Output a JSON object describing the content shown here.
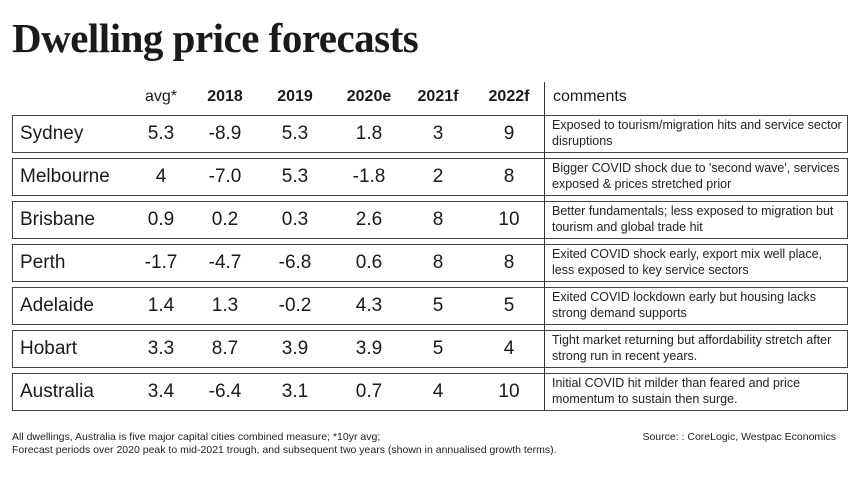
{
  "title": "Dwelling price forecasts",
  "table": {
    "columns": [
      "",
      "avg*",
      "2018",
      "2019",
      "2020e",
      "2021f",
      "2022f",
      "comments"
    ],
    "rows": [
      {
        "city": "Sydney",
        "avg": "5.3",
        "y2018": "-8.9",
        "y2019": "5.3",
        "y2020e": "1.8",
        "y2021f": "3",
        "y2022f": "9",
        "comment": "Exposed to tourism/migration hits and service sector disruptions"
      },
      {
        "city": "Melbourne",
        "avg": "4",
        "y2018": "-7.0",
        "y2019": "5.3",
        "y2020e": "-1.8",
        "y2021f": "2",
        "y2022f": "8",
        "comment": "Bigger COVID shock due to 'second wave', services exposed & prices stretched prior"
      },
      {
        "city": "Brisbane",
        "avg": "0.9",
        "y2018": "0.2",
        "y2019": "0.3",
        "y2020e": "2.6",
        "y2021f": "8",
        "y2022f": "10",
        "comment": "Better fundamentals; less exposed to migration but tourism and global trade hit"
      },
      {
        "city": "Perth",
        "avg": "-1.7",
        "y2018": "-4.7",
        "y2019": "-6.8",
        "y2020e": "0.6",
        "y2021f": "8",
        "y2022f": "8",
        "comment": "Exited COVID shock early, export mix well place, less exposed to key service sectors"
      },
      {
        "city": "Adelaide",
        "avg": "1.4",
        "y2018": "1.3",
        "y2019": "-0.2",
        "y2020e": "4.3",
        "y2021f": "5",
        "y2022f": "5",
        "comment": "Exited COVID lockdown early but housing lacks strong demand supports"
      },
      {
        "city": "Hobart",
        "avg": "3.3",
        "y2018": "8.7",
        "y2019": "3.9",
        "y2020e": "3.9",
        "y2021f": "5",
        "y2022f": "4",
        "comment": "Tight market returning but affordability stretch after strong run in recent years."
      },
      {
        "city": "Australia",
        "avg": "3.4",
        "y2018": "-6.4",
        "y2019": "3.1",
        "y2020e": "0.7",
        "y2021f": "4",
        "y2022f": "10",
        "comment": "Initial COVID hit milder than feared and price momentum to sustain then surge."
      }
    ]
  },
  "footnote": {
    "line1": "All dwellings, Australia is five major capital cities combined measure; *10yr avg;",
    "line2": "Forecast periods over 2020 peak to mid-2021 trough, and subsequent two years (shown in annualised growth terms)."
  },
  "source": "Source: : CoreLogic, Westpac Economics"
}
